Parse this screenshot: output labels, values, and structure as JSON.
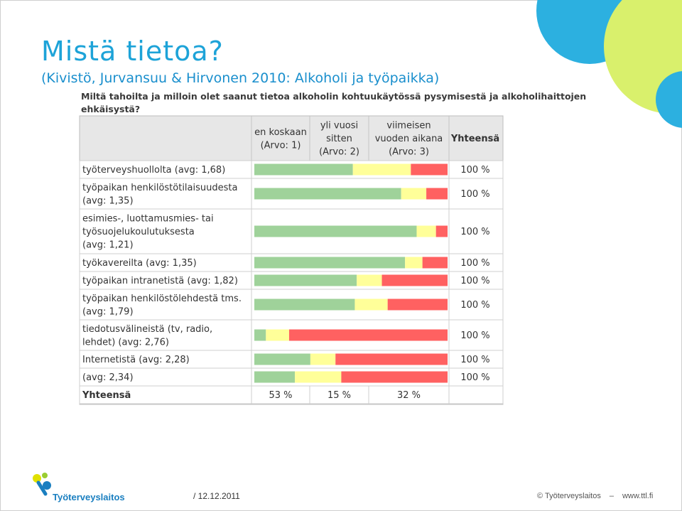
{
  "slide": {
    "title": "Mistä tietoa?",
    "subtitle": "(Kivistö, Jurvansuu & Hirvonen 2010: Alkoholi ja työpaikka)",
    "question": "Miltä tahoilta ja milloin olet saanut tietoa alkoholin kohtuukäytössä pysymisestä ja alkoholihaittojen ehkäisystä?"
  },
  "chart_data": {
    "type": "table",
    "chart_kind": "stacked-bar",
    "columns": [
      {
        "label": [
          "en koskaan",
          "(Arvo: 1)"
        ]
      },
      {
        "label": [
          "yli vuosi",
          "sitten",
          "(Arvo: 2)"
        ]
      },
      {
        "label": [
          "viimeisen",
          "vuoden aikana",
          "(Arvo: 3)"
        ]
      },
      {
        "label": [
          "Yhteensä"
        ]
      }
    ],
    "series_colors": [
      "#9fd29a",
      "#ffff99",
      "#ff6161"
    ],
    "rows": [
      {
        "label": [
          "työterveyshuollolta (avg: 1,68)"
        ],
        "values": [
          51,
          30,
          19
        ],
        "total": "100 %"
      },
      {
        "label": [
          "työpaikan henkilöstötilaisuudesta",
          "(avg: 1,35)"
        ],
        "values": [
          76,
          13,
          11
        ],
        "total": "100 %"
      },
      {
        "label": [
          "esimies-, luottamusmies- tai",
          "työsuojelukoulutuksesta",
          "(avg: 1,21)"
        ],
        "values": [
          84,
          10,
          6
        ],
        "total": "100 %"
      },
      {
        "label": [
          "työkavereilta (avg: 1,35)"
        ],
        "values": [
          78,
          9,
          13
        ],
        "total": "100 %"
      },
      {
        "label": [
          "työpaikan intranetistä (avg: 1,82)"
        ],
        "values": [
          53,
          13,
          34
        ],
        "total": "100 %"
      },
      {
        "label": [
          "työpaikan henkilöstölehdestä tms.",
          "(avg: 1,79)"
        ],
        "values": [
          52,
          17,
          31
        ],
        "total": "100 %"
      },
      {
        "label": [
          "tiedotusvälineistä (tv, radio,",
          "lehdet) (avg: 2,76)"
        ],
        "values": [
          6,
          12,
          82
        ],
        "total": "100 %"
      },
      {
        "label": [
          "Internetistä (avg: 2,28)"
        ],
        "values": [
          29,
          13,
          58
        ],
        "total": "100 %"
      },
      {
        "label": [
          "(avg: 2,34)"
        ],
        "values": [
          21,
          24,
          55
        ],
        "total": "100 %"
      }
    ],
    "totals_row": {
      "label": "Yhteensä",
      "values": [
        "53 %",
        "15 %",
        "32 %"
      ]
    }
  },
  "footer": {
    "logo_text": "Työterveyslaitos",
    "date": "/ 12.12.2011",
    "copyright": "© Työterveyslaitos",
    "dash": "–",
    "website": "www.ttl.fi"
  }
}
